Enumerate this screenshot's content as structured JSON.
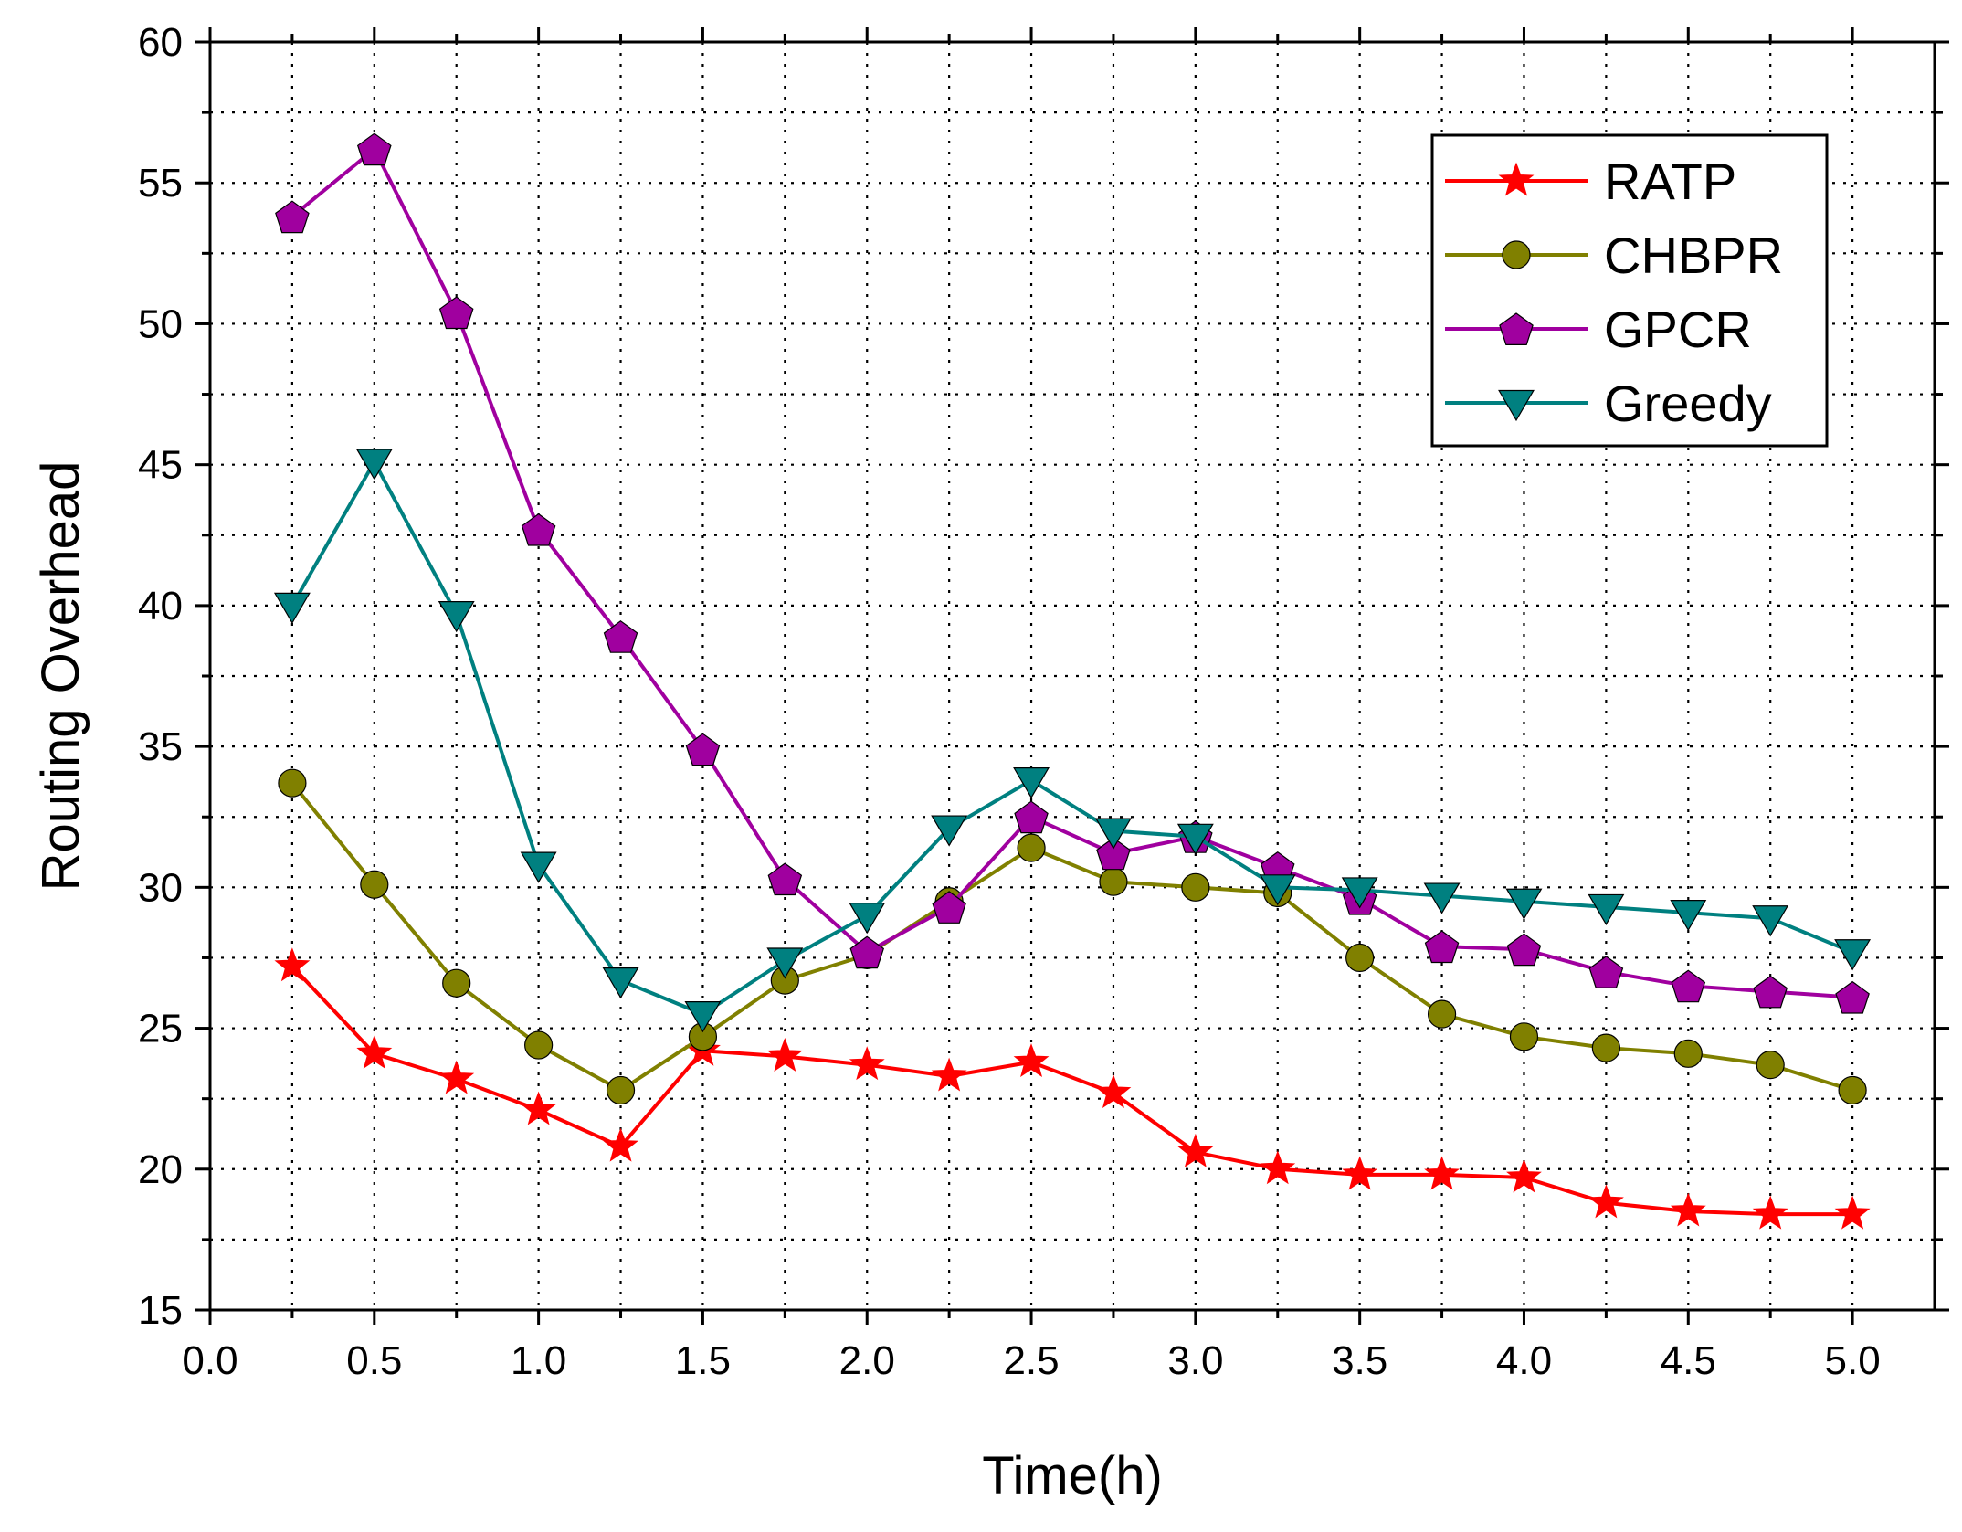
{
  "chart_data": {
    "type": "line",
    "title": "",
    "xlabel": "Time(h)",
    "ylabel": "Routing Overhead",
    "xlim": [
      0.0,
      5.25
    ],
    "ylim": [
      15,
      60
    ],
    "xticks": [
      "0.0",
      "0.5",
      "1.0",
      "1.5",
      "2.0",
      "2.5",
      "3.0",
      "3.5",
      "4.0",
      "4.5",
      "5.0"
    ],
    "yticks": [
      "15",
      "20",
      "25",
      "30",
      "35",
      "40",
      "45",
      "50",
      "55",
      "60"
    ],
    "grid": true,
    "legend_position": "top-right",
    "x": [
      0.25,
      0.5,
      0.75,
      1.0,
      1.25,
      1.5,
      1.75,
      2.0,
      2.25,
      2.5,
      2.75,
      3.0,
      3.25,
      3.5,
      3.75,
      4.0,
      4.25,
      4.5,
      4.75,
      5.0
    ],
    "series": [
      {
        "name": "RATP",
        "color": "#ff0000",
        "marker": "star",
        "values": [
          27.2,
          24.1,
          23.2,
          22.1,
          20.8,
          24.2,
          24.0,
          23.7,
          23.3,
          23.8,
          22.7,
          20.6,
          20.0,
          19.8,
          19.8,
          19.7,
          18.8,
          18.5,
          18.4,
          18.4
        ]
      },
      {
        "name": "CHBPR",
        "color": "#808000",
        "marker": "circle",
        "values": [
          33.7,
          30.1,
          26.6,
          24.4,
          22.8,
          24.7,
          26.7,
          27.6,
          29.5,
          31.4,
          30.2,
          30.0,
          29.8,
          27.5,
          25.5,
          24.7,
          24.3,
          24.1,
          23.7,
          22.8
        ]
      },
      {
        "name": "GPCR",
        "color": "#a0009f",
        "marker": "pentagon",
        "values": [
          53.8,
          56.2,
          50.4,
          42.7,
          38.9,
          34.9,
          30.3,
          27.7,
          29.3,
          32.5,
          31.2,
          31.8,
          30.7,
          29.6,
          27.9,
          27.8,
          27.0,
          26.5,
          26.3,
          26.1
        ]
      },
      {
        "name": "Greedy",
        "color": "#008080",
        "marker": "triangle-down",
        "values": [
          40.0,
          45.1,
          39.7,
          30.8,
          26.7,
          25.5,
          27.4,
          29.0,
          32.1,
          33.8,
          32.0,
          31.8,
          30.0,
          29.9,
          29.7,
          29.5,
          29.3,
          29.1,
          28.9,
          27.7
        ]
      }
    ]
  }
}
